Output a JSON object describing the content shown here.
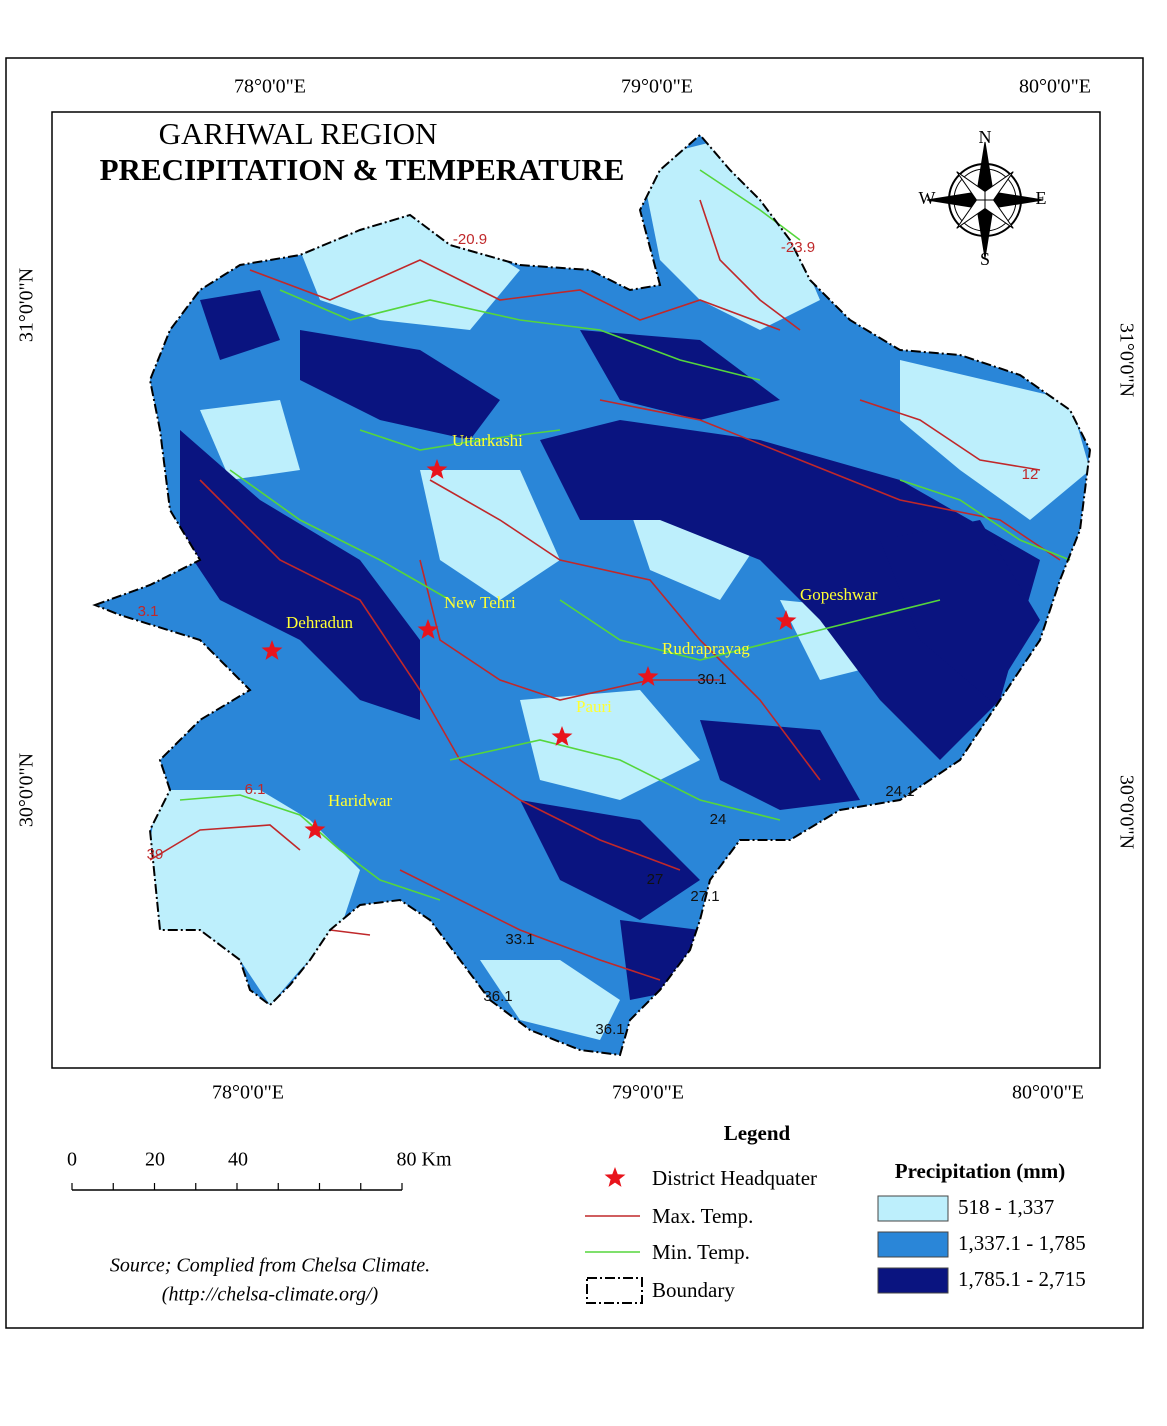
{
  "title": "GARHWAL REGION",
  "subtitle": "PRECIPITATION & TEMPERATURE",
  "graticule": {
    "top": [
      "78°0'0\"E",
      "79°0'0\"E",
      "80°0'0\"E"
    ],
    "bottom": [
      "78°0'0\"E",
      "79°0'0\"E",
      "80°0'0\"E"
    ],
    "left": [
      "31°0'0\"N",
      "30°0'0\"N"
    ],
    "right": [
      "31°0'0\"N",
      "30°0'0\"N"
    ]
  },
  "compass": {
    "north": "N",
    "south": "S",
    "east": "E",
    "west": "W"
  },
  "cities": [
    "Uttarkashi",
    "New Tehri",
    "Dehradun",
    "Rudraprayag",
    "Gopeshwar",
    "Pauri",
    "Haridwar"
  ],
  "contour_labels": [
    "3.1",
    "6.1",
    "39",
    "30.1",
    "33.1",
    "36.1",
    "36.1",
    "27.1",
    "27",
    "24",
    "24.1",
    "-23.9",
    "-20.9",
    "12"
  ],
  "scale_bar": {
    "labels": [
      "0",
      "20",
      "40",
      "80 Km"
    ]
  },
  "source": [
    "Source; Complied from Chelsa Climate.",
    "(http://chelsa-climate.org/)"
  ],
  "legend": {
    "title": "Legend",
    "headquarter": {
      "label": "District Headquater",
      "color": "#e8141c"
    },
    "max_temp": {
      "label": "Max. Temp.",
      "color": "#c0282a"
    },
    "min_temp": {
      "label": "Min. Temp.",
      "color": "#55d63c"
    },
    "boundary": {
      "label": "Boundary"
    },
    "precipitation": {
      "title": "Precipitation (mm)",
      "classes": [
        {
          "label": "518 - 1,337",
          "color": "#bdeffc"
        },
        {
          "label": "1,337.1 - 1,785",
          "color": "#2a86d8"
        },
        {
          "label": "1,785.1 - 2,715",
          "color": "#0a1480"
        }
      ]
    }
  }
}
